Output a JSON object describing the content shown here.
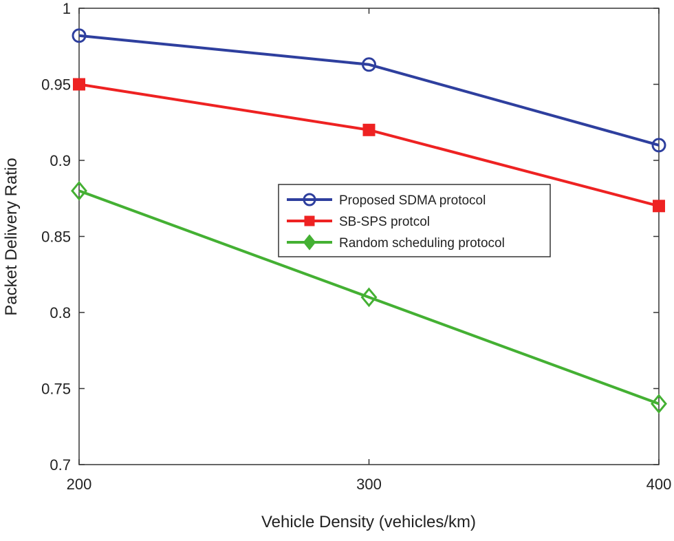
{
  "chart_data": {
    "type": "line",
    "title": "",
    "xlabel": "Vehicle Density (vehicles/km)",
    "ylabel": "Packet Delivery Ratio",
    "x": [
      200,
      300,
      400
    ],
    "xlim": [
      200,
      400
    ],
    "ylim": [
      0.7,
      1.0
    ],
    "xticks": [
      200,
      300,
      400
    ],
    "xtick_labels": [
      "200",
      "300",
      "400"
    ],
    "yticks": [
      0.7,
      0.75,
      0.8,
      0.85,
      0.9,
      0.95,
      1.0
    ],
    "ytick_labels": [
      "0.7",
      "0.75",
      "0.8",
      "0.85",
      "0.9",
      "0.95",
      "1"
    ],
    "grid": false,
    "legend_position": "center-right",
    "series": [
      {
        "name": "Proposed SDMA protocol",
        "values": [
          0.982,
          0.963,
          0.91
        ],
        "color": "#2e3f9e",
        "marker": "circle"
      },
      {
        "name": "SB-SPS protcol",
        "values": [
          0.95,
          0.92,
          0.87
        ],
        "color": "#ee2222",
        "marker": "square"
      },
      {
        "name": "Random scheduling protocol",
        "values": [
          0.88,
          0.81,
          0.74
        ],
        "color": "#44b033",
        "marker": "diamond"
      }
    ]
  }
}
